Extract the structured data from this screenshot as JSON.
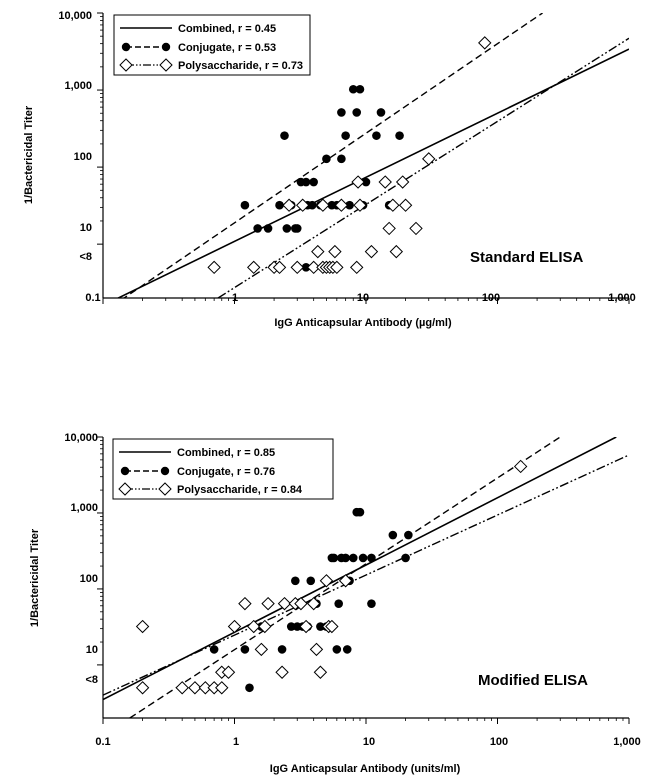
{
  "chart_data": [
    {
      "type": "scatter",
      "xscale": "log",
      "yscale": "log",
      "xlim": [
        0.1,
        1000
      ],
      "ylim": [
        2,
        10000
      ],
      "x_ticks": [
        {
          "value": 0.1,
          "label": "0.1"
        },
        {
          "value": 1,
          "label": "1"
        },
        {
          "value": 10,
          "label": "10"
        },
        {
          "value": 100,
          "label": "100"
        },
        {
          "value": 1000,
          "label": "1,000"
        }
      ],
      "y_ticks": [
        {
          "value": 5,
          "label": "<8"
        },
        {
          "value": 10,
          "label": "10"
        },
        {
          "value": 100,
          "label": "100"
        },
        {
          "value": 1000,
          "label": "1,000"
        },
        {
          "value": 10000,
          "label": "10,000"
        }
      ],
      "xlabel": "IgG Anticapsular Antibody (µg/ml)",
      "ylabel": "1/Bactericidal Titer",
      "annotation": "Standard ELISA",
      "legend_position": "top-left",
      "grid": false,
      "series": [
        {
          "name": "Conjugate, r = 0.53",
          "marker": "filled-circle",
          "points": [
            [
              1.2,
              32
            ],
            [
              1.5,
              16
            ],
            [
              1.8,
              16
            ],
            [
              2.2,
              32
            ],
            [
              2.4,
              256
            ],
            [
              2.5,
              16
            ],
            [
              2.7,
              32
            ],
            [
              2.9,
              16
            ],
            [
              3,
              16
            ],
            [
              3.2,
              64
            ],
            [
              3.5,
              64
            ],
            [
              3.6,
              32
            ],
            [
              3.9,
              32
            ],
            [
              4,
              64
            ],
            [
              4.5,
              32
            ],
            [
              5,
              128
            ],
            [
              5.5,
              32
            ],
            [
              6,
              32
            ],
            [
              6.5,
              512
            ],
            [
              6.5,
              128
            ],
            [
              7,
              256
            ],
            [
              7.5,
              32
            ],
            [
              8,
              1024
            ],
            [
              8.5,
              512
            ],
            [
              9,
              1024
            ],
            [
              9.5,
              32
            ],
            [
              10,
              64
            ],
            [
              12,
              256
            ],
            [
              13,
              512
            ],
            [
              15,
              32
            ],
            [
              18,
              256
            ],
            [
              3.5,
              5
            ]
          ]
        },
        {
          "name": "Polysaccharide, r = 0.73",
          "marker": "open-diamond",
          "points": [
            [
              0.7,
              5
            ],
            [
              1.4,
              5
            ],
            [
              2,
              5
            ],
            [
              2.2,
              5
            ],
            [
              2.6,
              32
            ],
            [
              3,
              5
            ],
            [
              3.3,
              32
            ],
            [
              4,
              5
            ],
            [
              4.3,
              8
            ],
            [
              4.7,
              5
            ],
            [
              4.7,
              32
            ],
            [
              5,
              5
            ],
            [
              5.3,
              5
            ],
            [
              5.6,
              5
            ],
            [
              5.8,
              8
            ],
            [
              6,
              5
            ],
            [
              6.5,
              32
            ],
            [
              8.5,
              5
            ],
            [
              8.7,
              64
            ],
            [
              9,
              32
            ],
            [
              11,
              8
            ],
            [
              14,
              64
            ],
            [
              15,
              16
            ],
            [
              16,
              32
            ],
            [
              17,
              8
            ],
            [
              19,
              64
            ],
            [
              20,
              32
            ],
            [
              24,
              16
            ],
            [
              30,
              128
            ],
            [
              80,
              4096
            ]
          ]
        }
      ],
      "fit_lines": [
        {
          "name": "Combined, r = 0.45",
          "style": "solid",
          "points": [
            [
              0.1,
              1.6
            ],
            [
              1000,
              3400
            ]
          ]
        },
        {
          "name": "Conjugate, r = 0.53",
          "style": "dashed",
          "points": [
            [
              0.1,
              1.3
            ],
            [
              220,
              10000
            ]
          ]
        },
        {
          "name": "Polysaccharide, r = 0.73",
          "style": "dash-dot-dot",
          "points": [
            [
              0.75,
              2
            ],
            [
              1000,
              4700
            ]
          ]
        }
      ]
    },
    {
      "type": "scatter",
      "xscale": "log",
      "yscale": "log",
      "xlim": [
        0.1,
        1000
      ],
      "ylim": [
        2,
        10000
      ],
      "x_ticks": [
        {
          "value": 0.1,
          "label": "0.1"
        },
        {
          "value": 1,
          "label": "1"
        },
        {
          "value": 10,
          "label": "10"
        },
        {
          "value": 100,
          "label": "100"
        },
        {
          "value": 1000,
          "label": "1,000"
        }
      ],
      "y_ticks": [
        {
          "value": 5,
          "label": "<8"
        },
        {
          "value": 10,
          "label": "10"
        },
        {
          "value": 100,
          "label": "100"
        },
        {
          "value": 1000,
          "label": "1,000"
        },
        {
          "value": 10000,
          "label": "10,000"
        }
      ],
      "xlabel": "IgG Anticapsular Antibody (units/ml)",
      "ylabel": "1/Bactericidal Titer",
      "annotation": "Modified ELISA",
      "legend_position": "top-left",
      "grid": false,
      "series": [
        {
          "name": "Conjugate, r = 0.76",
          "marker": "filled-circle",
          "points": [
            [
              0.7,
              16
            ],
            [
              1.2,
              16
            ],
            [
              1.3,
              5
            ],
            [
              1.6,
              32
            ],
            [
              2.3,
              16
            ],
            [
              2.7,
              32
            ],
            [
              2.9,
              128
            ],
            [
              3,
              32
            ],
            [
              3.3,
              32
            ],
            [
              3.6,
              32
            ],
            [
              3.8,
              128
            ],
            [
              4.2,
              64
            ],
            [
              4.5,
              32
            ],
            [
              5,
              32
            ],
            [
              5.5,
              256
            ],
            [
              5.7,
              256
            ],
            [
              6,
              16
            ],
            [
              6.2,
              64
            ],
            [
              6.5,
              256
            ],
            [
              7,
              256
            ],
            [
              7.2,
              16
            ],
            [
              7.5,
              128
            ],
            [
              8,
              256
            ],
            [
              8.5,
              1024
            ],
            [
              9,
              1024
            ],
            [
              9.5,
              256
            ],
            [
              11,
              256
            ],
            [
              11,
              64
            ],
            [
              16,
              512
            ],
            [
              20,
              256
            ],
            [
              21,
              512
            ]
          ]
        },
        {
          "name": "Polysaccharide, r = 0.84",
          "marker": "open-diamond",
          "points": [
            [
              0.2,
              32
            ],
            [
              0.2,
              5
            ],
            [
              0.4,
              5
            ],
            [
              0.5,
              5
            ],
            [
              0.6,
              5
            ],
            [
              0.7,
              5
            ],
            [
              0.8,
              5
            ],
            [
              0.8,
              8
            ],
            [
              0.9,
              8
            ],
            [
              1,
              32
            ],
            [
              1.2,
              64
            ],
            [
              1.4,
              32
            ],
            [
              1.6,
              16
            ],
            [
              1.7,
              32
            ],
            [
              1.8,
              64
            ],
            [
              2.3,
              8
            ],
            [
              2.4,
              64
            ],
            [
              2.9,
              64
            ],
            [
              3.2,
              64
            ],
            [
              3.5,
              32
            ],
            [
              4,
              64
            ],
            [
              4.2,
              16
            ],
            [
              4.5,
              8
            ],
            [
              5,
              128
            ],
            [
              5.2,
              32
            ],
            [
              5.5,
              32
            ],
            [
              7,
              128
            ],
            [
              150,
              4096
            ]
          ]
        }
      ],
      "fit_lines": [
        {
          "name": "Combined, r = 0.85",
          "style": "solid",
          "points": [
            [
              0.1,
              3.5
            ],
            [
              800,
              10000
            ]
          ]
        },
        {
          "name": "Conjugate, r = 0.76",
          "style": "dashed",
          "points": [
            [
              0.16,
              2
            ],
            [
              300,
              10000
            ]
          ]
        },
        {
          "name": "Polysaccharide, r = 0.84",
          "style": "dash-dot-dot",
          "points": [
            [
              0.1,
              4
            ],
            [
              1000,
              5800
            ]
          ]
        }
      ]
    }
  ]
}
